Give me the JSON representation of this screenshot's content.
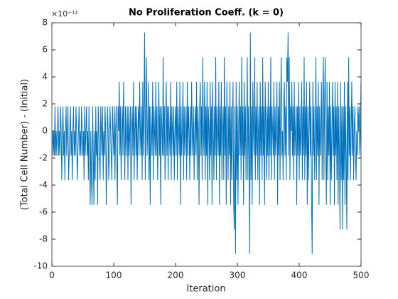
{
  "chart_data": {
    "type": "line",
    "title": "No Proliferation Coeff. (k = 0)",
    "x_label": "Iteration",
    "y_label": "(Total Cell Number) - (Initial)",
    "y_exponent": "×10⁻¹²",
    "color": "#0072bd",
    "xlim": [
      0,
      500
    ],
    "ylim": [
      -10,
      8
    ],
    "xticks": [
      0,
      100,
      200,
      300,
      400,
      500
    ],
    "yticks": [
      -10,
      -8,
      -6,
      -4,
      -2,
      0,
      2,
      4,
      6,
      8
    ],
    "grid": false,
    "x": [
      0,
      1,
      2,
      3,
      4,
      5,
      6,
      7,
      8,
      9,
      10,
      11,
      12,
      13,
      14,
      15,
      16,
      17,
      18,
      19,
      20,
      21,
      22,
      23,
      24,
      25,
      26,
      27,
      28,
      29,
      30,
      31,
      32,
      33,
      34,
      35,
      36,
      37,
      38,
      39,
      40,
      41,
      42,
      43,
      44,
      45,
      46,
      47,
      48,
      49,
      50,
      51,
      52,
      53,
      54,
      55,
      56,
      57,
      58,
      59,
      60,
      61,
      62,
      63,
      64,
      65,
      66,
      67,
      68,
      69,
      70,
      71,
      72,
      73,
      74,
      75,
      76,
      77,
      78,
      79,
      80,
      81,
      82,
      83,
      84,
      85,
      86,
      87,
      88,
      89,
      90,
      91,
      92,
      93,
      94,
      95,
      96,
      97,
      98,
      99,
      100,
      101,
      102,
      103,
      104,
      105,
      106,
      107,
      108,
      109,
      110,
      111,
      112,
      113,
      114,
      115,
      116,
      117,
      118,
      119,
      120,
      121,
      122,
      123,
      124,
      125,
      126,
      127,
      128,
      129,
      130,
      131,
      132,
      133,
      134,
      135,
      136,
      137,
      138,
      139,
      140,
      141,
      142,
      143,
      144,
      145,
      146,
      147,
      148,
      149,
      150,
      151,
      152,
      153,
      154,
      155,
      156,
      157,
      158,
      159,
      160,
      161,
      162,
      163,
      164,
      165,
      166,
      167,
      168,
      169,
      170,
      171,
      172,
      173,
      174,
      175,
      176,
      177,
      178,
      179,
      180,
      181,
      182,
      183,
      184,
      185,
      186,
      187,
      188,
      189,
      190,
      191,
      192,
      193,
      194,
      195,
      196,
      197,
      198,
      199,
      200,
      201,
      202,
      203,
      204,
      205,
      206,
      207,
      208,
      209,
      210,
      211,
      212,
      213,
      214,
      215,
      216,
      217,
      218,
      219,
      220,
      221,
      222,
      223,
      224,
      225,
      226,
      227,
      228,
      229,
      230,
      231,
      232,
      233,
      234,
      235,
      236,
      237,
      238,
      239,
      240,
      241,
      242,
      243,
      244,
      245,
      246,
      247,
      248,
      249,
      250,
      251,
      252,
      253,
      254,
      255,
      256,
      257,
      258,
      259,
      260,
      261,
      262,
      263,
      264,
      265,
      266,
      267,
      268,
      269,
      270,
      271,
      272,
      273,
      274,
      275,
      276,
      277,
      278,
      279,
      280,
      281,
      282,
      283,
      284,
      285,
      286,
      287,
      288,
      289,
      290,
      291,
      292,
      293,
      294,
      295,
      296,
      297,
      298,
      299,
      300,
      301,
      302,
      303,
      304,
      305,
      306,
      307,
      308,
      309,
      310,
      311,
      312,
      313,
      314,
      315,
      316,
      317,
      318,
      319,
      320,
      321,
      322,
      323,
      324,
      325,
      326,
      327,
      328,
      329,
      330,
      331,
      332,
      333,
      334,
      335,
      336,
      337,
      338,
      339,
      340,
      341,
      342,
      343,
      344,
      345,
      346,
      347,
      348,
      349,
      350,
      351,
      352,
      353,
      354,
      355,
      356,
      357,
      358,
      359,
      360,
      361,
      362,
      363,
      364,
      365,
      366,
      367,
      368,
      369,
      370,
      371,
      372,
      373,
      374,
      375,
      376,
      377,
      378,
      379,
      380,
      381,
      382,
      383,
      384,
      385,
      386,
      387,
      388,
      389,
      390,
      391,
      392,
      393,
      394,
      395,
      396,
      397,
      398,
      399,
      400,
      401,
      402,
      403,
      404,
      405,
      406,
      407,
      408,
      409,
      410,
      411,
      412,
      413,
      414,
      415,
      416,
      417,
      418,
      419,
      420,
      421,
      422,
      423,
      424,
      425,
      426,
      427,
      428,
      429,
      430,
      431,
      432,
      433,
      434,
      435,
      436,
      437,
      438,
      439,
      440,
      441,
      442,
      443,
      444,
      445,
      446,
      447,
      448,
      449,
      450,
      451,
      452,
      453,
      454,
      455,
      456,
      457,
      458,
      459,
      460,
      461,
      462,
      463,
      464,
      465,
      466,
      467,
      468,
      469,
      470,
      471,
      472,
      473,
      474,
      475,
      476,
      477,
      478,
      479,
      480,
      481,
      482,
      483,
      484,
      485,
      486,
      487,
      488,
      489,
      490,
      491,
      492,
      493,
      494,
      495,
      496,
      497,
      498,
      499,
      500
    ],
    "values": [
      0,
      0,
      -1.82,
      0,
      -1.82,
      1.82,
      -1.82,
      0,
      -1.82,
      0,
      1.82,
      -1.82,
      0,
      -1.82,
      1.82,
      0,
      -3.64,
      0,
      1.82,
      -1.82,
      0,
      -3.64,
      0,
      1.82,
      -1.82,
      0,
      1.82,
      -3.64,
      -1.82,
      0,
      1.82,
      -1.82,
      0,
      -3.64,
      0,
      1.82,
      -1.82,
      0,
      -1.82,
      1.82,
      0,
      -3.64,
      -1.82,
      0,
      1.82,
      -1.82,
      0,
      -1.82,
      1.82,
      0,
      -1.82,
      0,
      -3.64,
      1.82,
      -1.82,
      0,
      1.82,
      -1.82,
      0,
      -3.64,
      1.82,
      -1.82,
      -5.46,
      0,
      -3.64,
      -5.46,
      1.82,
      -1.82,
      -5.46,
      0,
      -3.64,
      1.82,
      -1.82,
      0,
      -5.46,
      1.82,
      0,
      -1.82,
      -3.64,
      1.82,
      0,
      -1.82,
      1.82,
      -3.64,
      0,
      -1.82,
      1.82,
      0,
      -5.46,
      -1.82,
      1.82,
      0,
      -3.64,
      -1.82,
      1.82,
      0,
      -1.82,
      -3.64,
      1.82,
      0,
      -1.82,
      1.82,
      -3.64,
      0,
      1.82,
      -1.82,
      -5.46,
      1.82,
      0,
      3.64,
      -1.82,
      1.82,
      -3.64,
      0,
      1.82,
      -1.82,
      3.64,
      0,
      -3.64,
      1.82,
      -1.82,
      0,
      1.82,
      -3.64,
      1.82,
      -1.82,
      0,
      1.82,
      -5.46,
      0,
      1.82,
      -1.82,
      3.64,
      -3.64,
      0,
      1.82,
      -1.82,
      1.82,
      -3.64,
      0,
      1.82,
      -1.82,
      3.64,
      0,
      -1.82,
      1.82,
      -3.64,
      3.64,
      -1.82,
      1.82,
      7.28,
      -3.64,
      1.82,
      5.46,
      -1.82,
      0,
      3.64,
      -3.64,
      1.82,
      -5.46,
      1.82,
      0,
      -1.82,
      3.64,
      -3.64,
      1.82,
      0,
      -1.82,
      3.64,
      -1.82,
      1.82,
      -3.64,
      0,
      3.64,
      -1.82,
      1.82,
      -5.46,
      1.82,
      0,
      -1.82,
      5.46,
      -1.82,
      1.82,
      -3.64,
      0,
      3.64,
      -1.82,
      1.82,
      -3.64,
      1.82,
      0,
      -1.82,
      3.64,
      -3.64,
      1.82,
      0,
      -1.82,
      1.82,
      -3.64,
      0,
      1.82,
      -1.82,
      3.64,
      -3.64,
      1.82,
      0,
      -1.82,
      3.64,
      -5.46,
      1.82,
      -1.82,
      0,
      3.64,
      -3.64,
      1.82,
      -1.82,
      0,
      1.82,
      -3.64,
      3.64,
      -1.82,
      1.82,
      0,
      -3.64,
      1.82,
      -1.82,
      3.64,
      0,
      -1.82,
      1.82,
      -3.64,
      0,
      1.82,
      -1.82,
      3.64,
      -3.64,
      1.82,
      0,
      -5.46,
      1.82,
      3.64,
      -1.82,
      1.82,
      -3.64,
      5.46,
      0,
      -1.82,
      3.64,
      -3.64,
      1.82,
      -1.82,
      3.64,
      -5.46,
      1.82,
      0,
      -3.64,
      3.64,
      -1.82,
      1.82,
      -5.46,
      3.64,
      0,
      -3.64,
      1.82,
      -1.82,
      5.46,
      -3.64,
      1.82,
      0,
      -1.82,
      3.64,
      -5.46,
      1.82,
      -1.82,
      3.64,
      -3.64,
      0,
      1.82,
      -3.64,
      5.46,
      -1.82,
      1.82,
      -5.46,
      3.64,
      0,
      -3.64,
      1.82,
      -1.82,
      3.64,
      -5.46,
      1.82,
      -3.64,
      0,
      3.64,
      -5.46,
      -7.28,
      1.82,
      -9.09,
      3.64,
      -3.64,
      1.82,
      -5.46,
      0,
      3.64,
      -1.82,
      1.82,
      -3.64,
      5.46,
      -1.82,
      1.82,
      -5.46,
      3.64,
      -1.82,
      1.82,
      -3.64,
      0,
      5.46,
      -3.64,
      1.82,
      -1.82,
      -9.09,
      7.28,
      -3.64,
      1.82,
      -5.46,
      3.64,
      0,
      -1.82,
      5.46,
      -3.64,
      1.82,
      -1.82,
      3.64,
      -3.64,
      0,
      1.82,
      -5.46,
      3.64,
      -1.82,
      1.82,
      -3.64,
      5.46,
      -1.82,
      1.82,
      -5.46,
      3.64,
      0,
      -3.64,
      1.82,
      -1.82,
      3.64,
      -3.64,
      1.82,
      -1.82,
      5.46,
      -3.64,
      1.82,
      0,
      -1.82,
      3.64,
      -3.64,
      1.82,
      -1.82,
      0,
      3.64,
      -5.46,
      1.82,
      -1.82,
      3.64,
      -3.64,
      1.82,
      5.46,
      -1.82,
      0,
      -3.64,
      1.82,
      3.64,
      -1.82,
      1.82,
      -3.64,
      5.46,
      3.64,
      7.28,
      -1.82,
      5.46,
      -3.64,
      1.82,
      0,
      3.64,
      -1.82,
      1.82,
      -3.64,
      3.64,
      -1.82,
      0,
      1.82,
      -5.46,
      1.82,
      -1.82,
      3.64,
      -3.64,
      1.82,
      -1.82,
      0,
      3.64,
      -3.64,
      1.82,
      -1.82,
      5.46,
      -3.64,
      1.82,
      -1.82,
      3.64,
      -5.46,
      1.82,
      -3.64,
      0,
      3.64,
      -1.82,
      1.82,
      -5.46,
      -9.09,
      3.64,
      -1.82,
      1.82,
      -3.64,
      0,
      5.46,
      -3.64,
      1.82,
      -1.82,
      3.64,
      -5.46,
      1.82,
      -1.82,
      0,
      3.64,
      -3.64,
      1.82,
      5.46,
      -3.64,
      1.82,
      5.46,
      -1.82,
      -5.46,
      3.64,
      -3.64,
      1.82,
      -1.82,
      3.64,
      -5.46,
      1.82,
      -3.64,
      0,
      3.64,
      -1.82,
      1.82,
      -5.46,
      3.64,
      -1.82,
      1.82,
      -3.64,
      3.64,
      -5.46,
      1.82,
      -1.82,
      -7.28,
      3.64,
      -3.64,
      1.82,
      -7.28,
      1.82,
      -3.64,
      3.64,
      -5.46,
      1.82,
      -1.82,
      -7.28,
      3.64,
      -3.64,
      5.46,
      -1.82,
      1.82,
      -3.64,
      0,
      3.64,
      -1.82,
      1.82,
      -3.64,
      0,
      1.82,
      -1.82,
      -3.64,
      0,
      -1.82,
      1.82,
      0,
      1.82,
      -1.82,
      0,
      3.64
    ]
  }
}
